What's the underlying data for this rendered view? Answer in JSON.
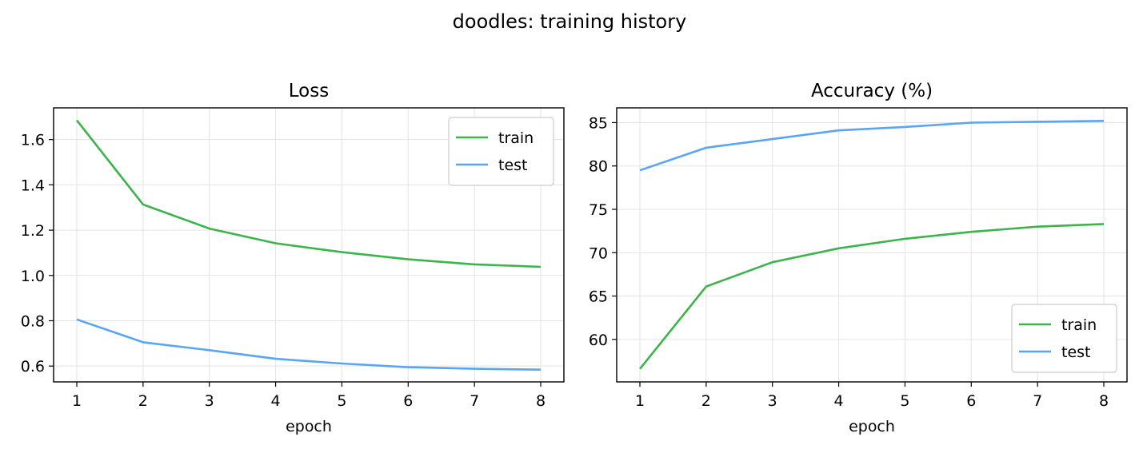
{
  "title": "doodles: training history",
  "colors": {
    "train": "#3cb44b",
    "test": "#59a5f5"
  },
  "chart_data": [
    {
      "type": "line",
      "title": "Loss",
      "xlabel": "epoch",
      "ylabel": "",
      "x": [
        1,
        2,
        3,
        4,
        5,
        6,
        7,
        8
      ],
      "xticks": [
        "1",
        "2",
        "3",
        "4",
        "5",
        "6",
        "7",
        "8"
      ],
      "yticks": [
        0.6,
        0.8,
        1.0,
        1.2,
        1.4,
        1.6
      ],
      "ytick_labels": [
        "0.6",
        "0.8",
        "1.0",
        "1.2",
        "1.4",
        "1.6"
      ],
      "xlim": [
        0.65,
        8.35
      ],
      "ylim": [
        0.53,
        1.74
      ],
      "grid": true,
      "legend": "top-right",
      "series": [
        {
          "name": "train",
          "color": "#3cb44b",
          "values": [
            1.685,
            1.313,
            1.207,
            1.142,
            1.103,
            1.071,
            1.049,
            1.038
          ]
        },
        {
          "name": "test",
          "color": "#59a5f5",
          "values": [
            0.806,
            0.705,
            0.67,
            0.632,
            0.611,
            0.595,
            0.588,
            0.584
          ]
        }
      ]
    },
    {
      "type": "line",
      "title": "Accuracy (%)",
      "xlabel": "epoch",
      "ylabel": "",
      "x": [
        1,
        2,
        3,
        4,
        5,
        6,
        7,
        8
      ],
      "xticks": [
        "1",
        "2",
        "3",
        "4",
        "5",
        "6",
        "7",
        "8"
      ],
      "yticks": [
        60,
        65,
        70,
        75,
        80,
        85
      ],
      "ytick_labels": [
        "60",
        "65",
        "70",
        "75",
        "80",
        "85"
      ],
      "xlim": [
        0.65,
        8.35
      ],
      "ylim": [
        55.1,
        86.7
      ],
      "grid": true,
      "legend": "bottom-right",
      "series": [
        {
          "name": "train",
          "color": "#3cb44b",
          "values": [
            56.6,
            66.1,
            68.9,
            70.5,
            71.6,
            72.4,
            73.0,
            73.3
          ]
        },
        {
          "name": "test",
          "color": "#59a5f5",
          "values": [
            79.5,
            82.1,
            83.1,
            84.1,
            84.5,
            85.0,
            85.1,
            85.2
          ]
        }
      ]
    }
  ]
}
